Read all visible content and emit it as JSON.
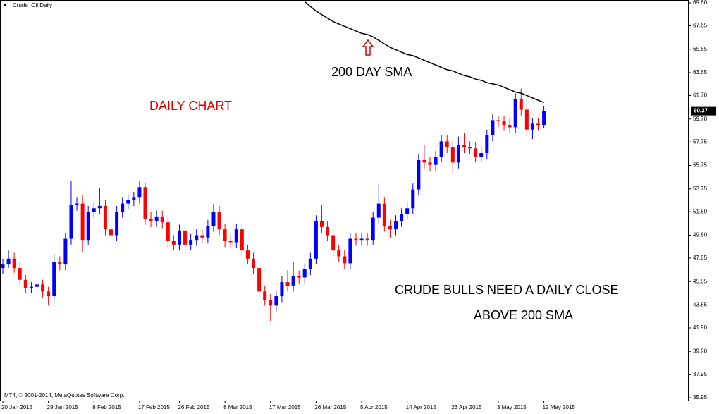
{
  "chart_data": {
    "type": "candlestick",
    "title": "Crude_Oil,Daily",
    "annotations": [
      "DAILY CHART",
      "200 DAY SMA",
      "CRUDE BULLS NEED A DAILY CLOSE",
      "ABOVE 200 SMA"
    ],
    "copyright": "MT4, © 2001-2014, MetaQuotes Software Corp.",
    "up_color": "#0000ff",
    "down_color": "#ff0000",
    "sma_color": "#000000",
    "categories": [
      "20 Jan 2015",
      null,
      null,
      null,
      null,
      null,
      null,
      null,
      "29 Jan 2015",
      null,
      null,
      null,
      null,
      null,
      null,
      null,
      "8 Feb 2015",
      null,
      null,
      null,
      null,
      null,
      null,
      null,
      "17 Feb 2015",
      null,
      null,
      null,
      null,
      null,
      null,
      "26 Feb 2015",
      null,
      null,
      null,
      null,
      null,
      null,
      null,
      "8 Mar 2015",
      null,
      null,
      null,
      null,
      null,
      null,
      null,
      "17 Mar 2015",
      null,
      null,
      null,
      null,
      null,
      null,
      null,
      "26 Mar 2015",
      null,
      null,
      null,
      null,
      null,
      null,
      null,
      "5 Apr 2015",
      null,
      null,
      null,
      null,
      null,
      null,
      null,
      "14 Apr 2015",
      null,
      null,
      null,
      null,
      null,
      null,
      null,
      "23 Apr 2015",
      null,
      null,
      null,
      null,
      null,
      null,
      null,
      "3 May 2015",
      null,
      null,
      null,
      null,
      null,
      null,
      null,
      "12 May 2015"
    ],
    "open": [
      47.0,
      47.3,
      47.8,
      47.0,
      46.0,
      45.3,
      45.4,
      45.6,
      45.0,
      44.6,
      47.5,
      47.3,
      49.5,
      52.4,
      52.5,
      49.4,
      51.8,
      52.1,
      52.3,
      50.3,
      49.8,
      51.8,
      52.5,
      52.8,
      53.0,
      53.9,
      51.2,
      51.0,
      51.4,
      50.9,
      49.3,
      49.0,
      50.2,
      49.0,
      49.4,
      49.8,
      49.6,
      50.6,
      51.8,
      50.3,
      49.3,
      49.2,
      50.3,
      48.5,
      47.8,
      47.0,
      45.0,
      44.3,
      43.8,
      44.6,
      45.8,
      45.5,
      46.3,
      46.2,
      46.9,
      47.8,
      51.0,
      50.5,
      49.8,
      48.5,
      48.0,
      47.4,
      49.5,
      49.4,
      49.5,
      49.4,
      51.3,
      52.5,
      50.6,
      50.3,
      51.0,
      51.6,
      52.1,
      53.7,
      56.2,
      56.0,
      55.8,
      56.5,
      57.8,
      57.3,
      56.0,
      57.5,
      57.3,
      57.2,
      56.5,
      56.8,
      58.3,
      59.6,
      59.5,
      59.2,
      59.0,
      61.4,
      60.5,
      58.8,
      59.3,
      59.2
    ],
    "high": [
      47.8,
      48.5,
      48.3,
      47.5,
      46.4,
      45.8,
      46.0,
      46.0,
      45.4,
      48.2,
      48.0,
      50.0,
      54.4,
      53.0,
      53.2,
      52.3,
      52.6,
      53.8,
      52.8,
      51.0,
      52.3,
      53.0,
      53.3,
      53.5,
      54.4,
      54.3,
      51.8,
      51.9,
      51.9,
      51.4,
      49.8,
      50.7,
      50.7,
      49.9,
      50.3,
      50.3,
      51.1,
      52.5,
      52.3,
      50.8,
      49.8,
      50.8,
      50.8,
      49.0,
      48.3,
      47.5,
      45.5,
      44.8,
      45.1,
      46.3,
      46.8,
      47.5,
      46.8,
      47.4,
      48.3,
      51.5,
      52.4,
      51.0,
      50.3,
      49.0,
      48.5,
      50.0,
      50.0,
      50.0,
      50.0,
      51.8,
      54.2,
      53.0,
      51.1,
      51.5,
      52.1,
      52.6,
      54.2,
      56.7,
      57.5,
      56.5,
      57.0,
      58.3,
      58.3,
      57.8,
      58.2,
      58.5,
      57.8,
      57.7,
      57.3,
      58.8,
      60.1,
      60.0,
      60.0,
      59.7,
      61.9,
      62.3,
      61.0,
      59.8,
      59.8,
      60.8
    ],
    "low": [
      46.5,
      47.0,
      46.6,
      45.6,
      44.9,
      44.9,
      44.9,
      44.5,
      43.8,
      44.2,
      46.8,
      46.8,
      49.0,
      51.9,
      48.3,
      49.0,
      51.3,
      51.6,
      49.8,
      48.8,
      49.3,
      51.3,
      52.0,
      52.3,
      52.5,
      50.7,
      50.5,
      50.5,
      50.4,
      48.8,
      48.5,
      48.5,
      48.3,
      48.5,
      48.9,
      49.1,
      49.1,
      50.1,
      49.8,
      48.8,
      48.7,
      48.7,
      48.0,
      47.3,
      46.5,
      44.5,
      43.8,
      42.5,
      43.3,
      44.1,
      45.0,
      45.0,
      45.7,
      45.7,
      46.4,
      47.3,
      50.0,
      49.3,
      48.0,
      47.5,
      46.9,
      46.9,
      48.9,
      48.9,
      48.9,
      49.0,
      50.8,
      50.1,
      49.6,
      49.8,
      50.5,
      51.1,
      51.6,
      53.2,
      55.5,
      55.3,
      55.3,
      56.0,
      56.8,
      55.0,
      55.5,
      56.8,
      56.7,
      56.0,
      56.0,
      56.3,
      57.8,
      59.0,
      58.7,
      58.5,
      58.5,
      60.0,
      58.3,
      58.0,
      58.7,
      58.9
    ],
    "close": [
      47.3,
      47.8,
      47.0,
      46.0,
      45.3,
      45.4,
      45.6,
      45.0,
      44.6,
      47.5,
      47.3,
      49.5,
      52.4,
      52.5,
      49.4,
      51.8,
      52.1,
      52.3,
      50.3,
      49.8,
      51.8,
      52.5,
      52.8,
      53.0,
      53.9,
      51.2,
      51.0,
      51.4,
      50.9,
      49.3,
      49.0,
      50.2,
      49.0,
      49.4,
      49.8,
      49.6,
      50.6,
      51.8,
      50.3,
      49.3,
      49.2,
      50.3,
      48.5,
      47.8,
      47.0,
      45.0,
      44.3,
      43.8,
      44.6,
      45.8,
      45.5,
      46.3,
      46.2,
      46.9,
      47.8,
      51.0,
      50.5,
      49.8,
      48.5,
      48.0,
      47.4,
      49.5,
      49.4,
      49.5,
      49.4,
      51.3,
      52.5,
      50.6,
      50.3,
      51.0,
      51.6,
      52.1,
      53.7,
      56.2,
      56.0,
      55.8,
      56.5,
      57.8,
      57.3,
      56.0,
      57.5,
      57.3,
      57.2,
      56.5,
      56.8,
      58.3,
      59.6,
      59.5,
      59.2,
      59.0,
      61.4,
      60.5,
      58.8,
      59.3,
      59.2,
      60.37
    ],
    "sma": [
      null,
      null,
      null,
      null,
      null,
      null,
      null,
      null,
      null,
      null,
      null,
      null,
      null,
      null,
      null,
      null,
      null,
      null,
      null,
      null,
      null,
      null,
      null,
      null,
      null,
      null,
      null,
      null,
      null,
      null,
      null,
      null,
      null,
      null,
      null,
      null,
      null,
      null,
      null,
      null,
      null,
      null,
      null,
      null,
      null,
      null,
      null,
      null,
      null,
      null,
      null,
      null,
      null,
      69.7,
      69.3,
      68.9,
      68.6,
      68.3,
      68.0,
      67.8,
      67.6,
      67.4,
      67.2,
      67.0,
      66.9,
      66.7,
      66.4,
      66.1,
      65.8,
      65.6,
      65.4,
      65.2,
      65.1,
      64.9,
      64.7,
      64.5,
      64.3,
      64.1,
      63.9,
      63.8,
      63.6,
      63.4,
      63.3,
      63.1,
      63.0,
      62.8,
      62.7,
      62.6,
      62.4,
      62.2,
      62.0,
      61.9,
      61.7,
      61.5,
      61.3,
      61.1
    ],
    "last_price": 60.37,
    "ylim": [
      35.95,
      69.6
    ],
    "yticks": [
      {
        "value": 69.6,
        "label": "69.60"
      },
      67.65,
      65.65,
      63.65,
      {
        "value": 61.7,
        "label": "61.70"
      },
      {
        "value": 59.7,
        "label": "59.70"
      },
      57.75,
      55.75,
      53.75,
      {
        "value": 51.8,
        "label": "51.80"
      },
      {
        "value": 49.8,
        "label": "49.80"
      },
      47.85,
      45.85,
      43.85,
      {
        "value": 41.9,
        "label": "41.90"
      },
      {
        "value": 39.9,
        "label": "39.90"
      },
      37.95,
      35.95
    ]
  }
}
